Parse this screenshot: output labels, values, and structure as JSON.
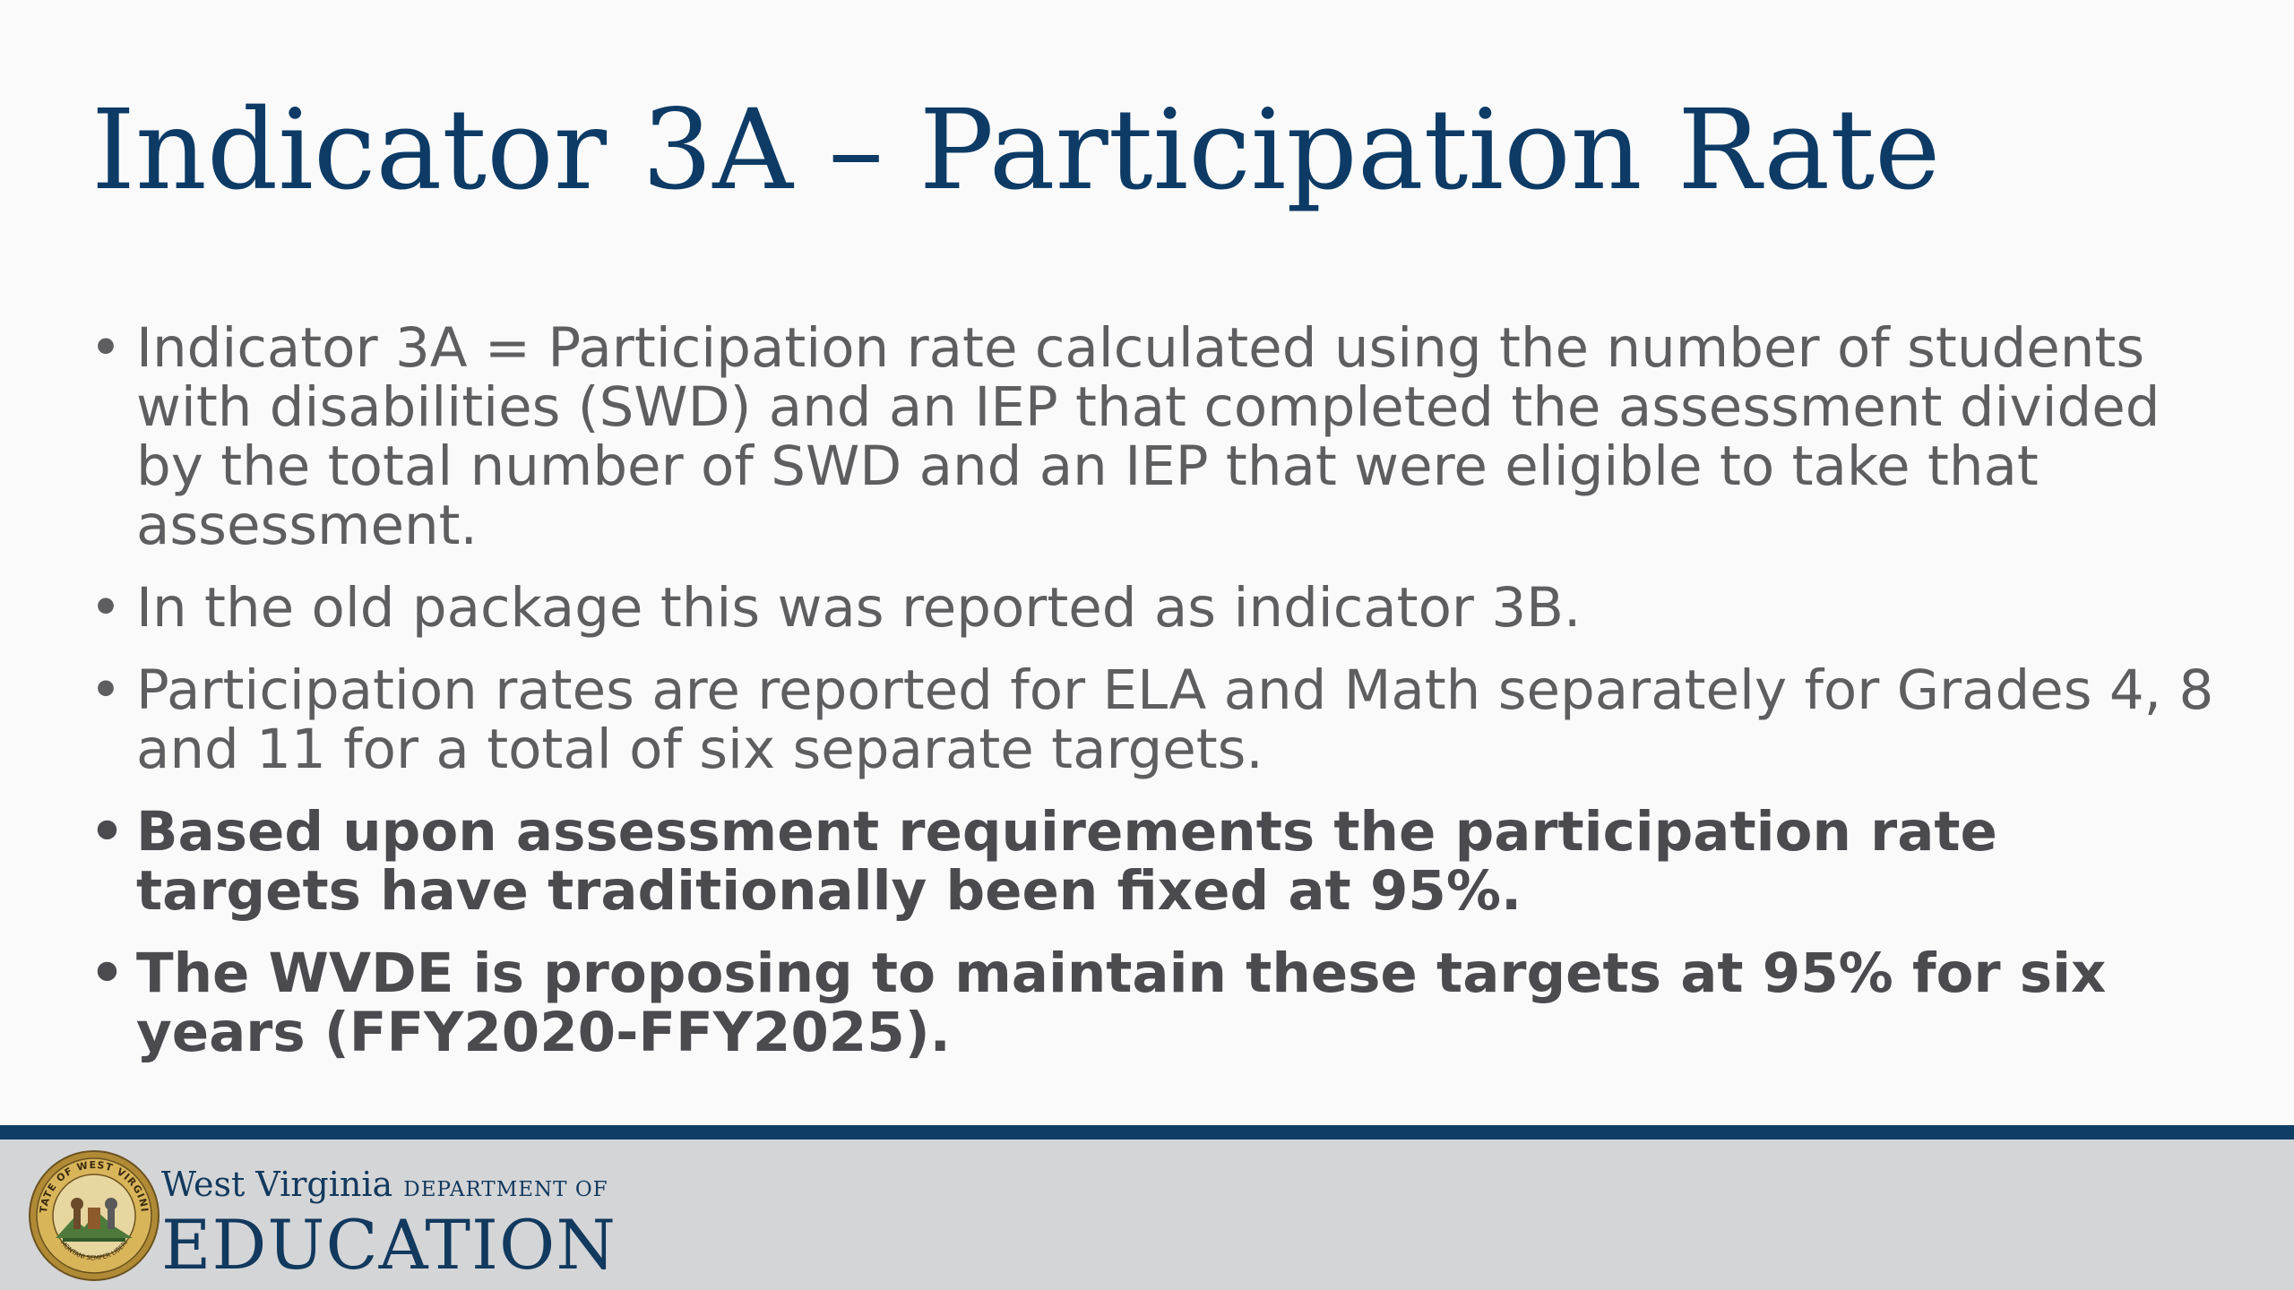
{
  "slide": {
    "title": "Indicator 3A – Participation Rate",
    "bullet_symbol": "•",
    "bullets": [
      {
        "text": "Indicator 3A = Participation rate calculated using the number of students with disabilities (SWD) and an IEP that completed the assessment divided by the total number of SWD and an IEP that were eligible to take that assessment.",
        "bold": false
      },
      {
        "text": "In the old package this was reported as indicator 3B.",
        "bold": false
      },
      {
        "text": "Participation rates are reported for ELA and Math separately for Grades 4, 8 and 11 for a total of six separate targets.",
        "bold": false
      },
      {
        "text": "Based upon assessment requirements the participation rate targets have traditionally been fixed at 95%.",
        "bold": true
      },
      {
        "text": "The WVDE is proposing to maintain these targets at 95% for six years (FFY2020-FFY2025).",
        "bold": true
      }
    ]
  },
  "footer": {
    "logo_line1_name": "West Virginia",
    "logo_line1_dept": "DEPARTMENT OF",
    "logo_line2": "EDUCATION",
    "seal_text": "STATE OF WEST VIRGINIA",
    "seal_motto": "MONTANI SEMPER LIBERI",
    "colors": {
      "rule": "#0f3d66",
      "band": "#d4d5d7",
      "seal_gold": "#c49a3a"
    }
  },
  "colors": {
    "title": "#0d3b66",
    "body_text": "#5e5e60"
  }
}
